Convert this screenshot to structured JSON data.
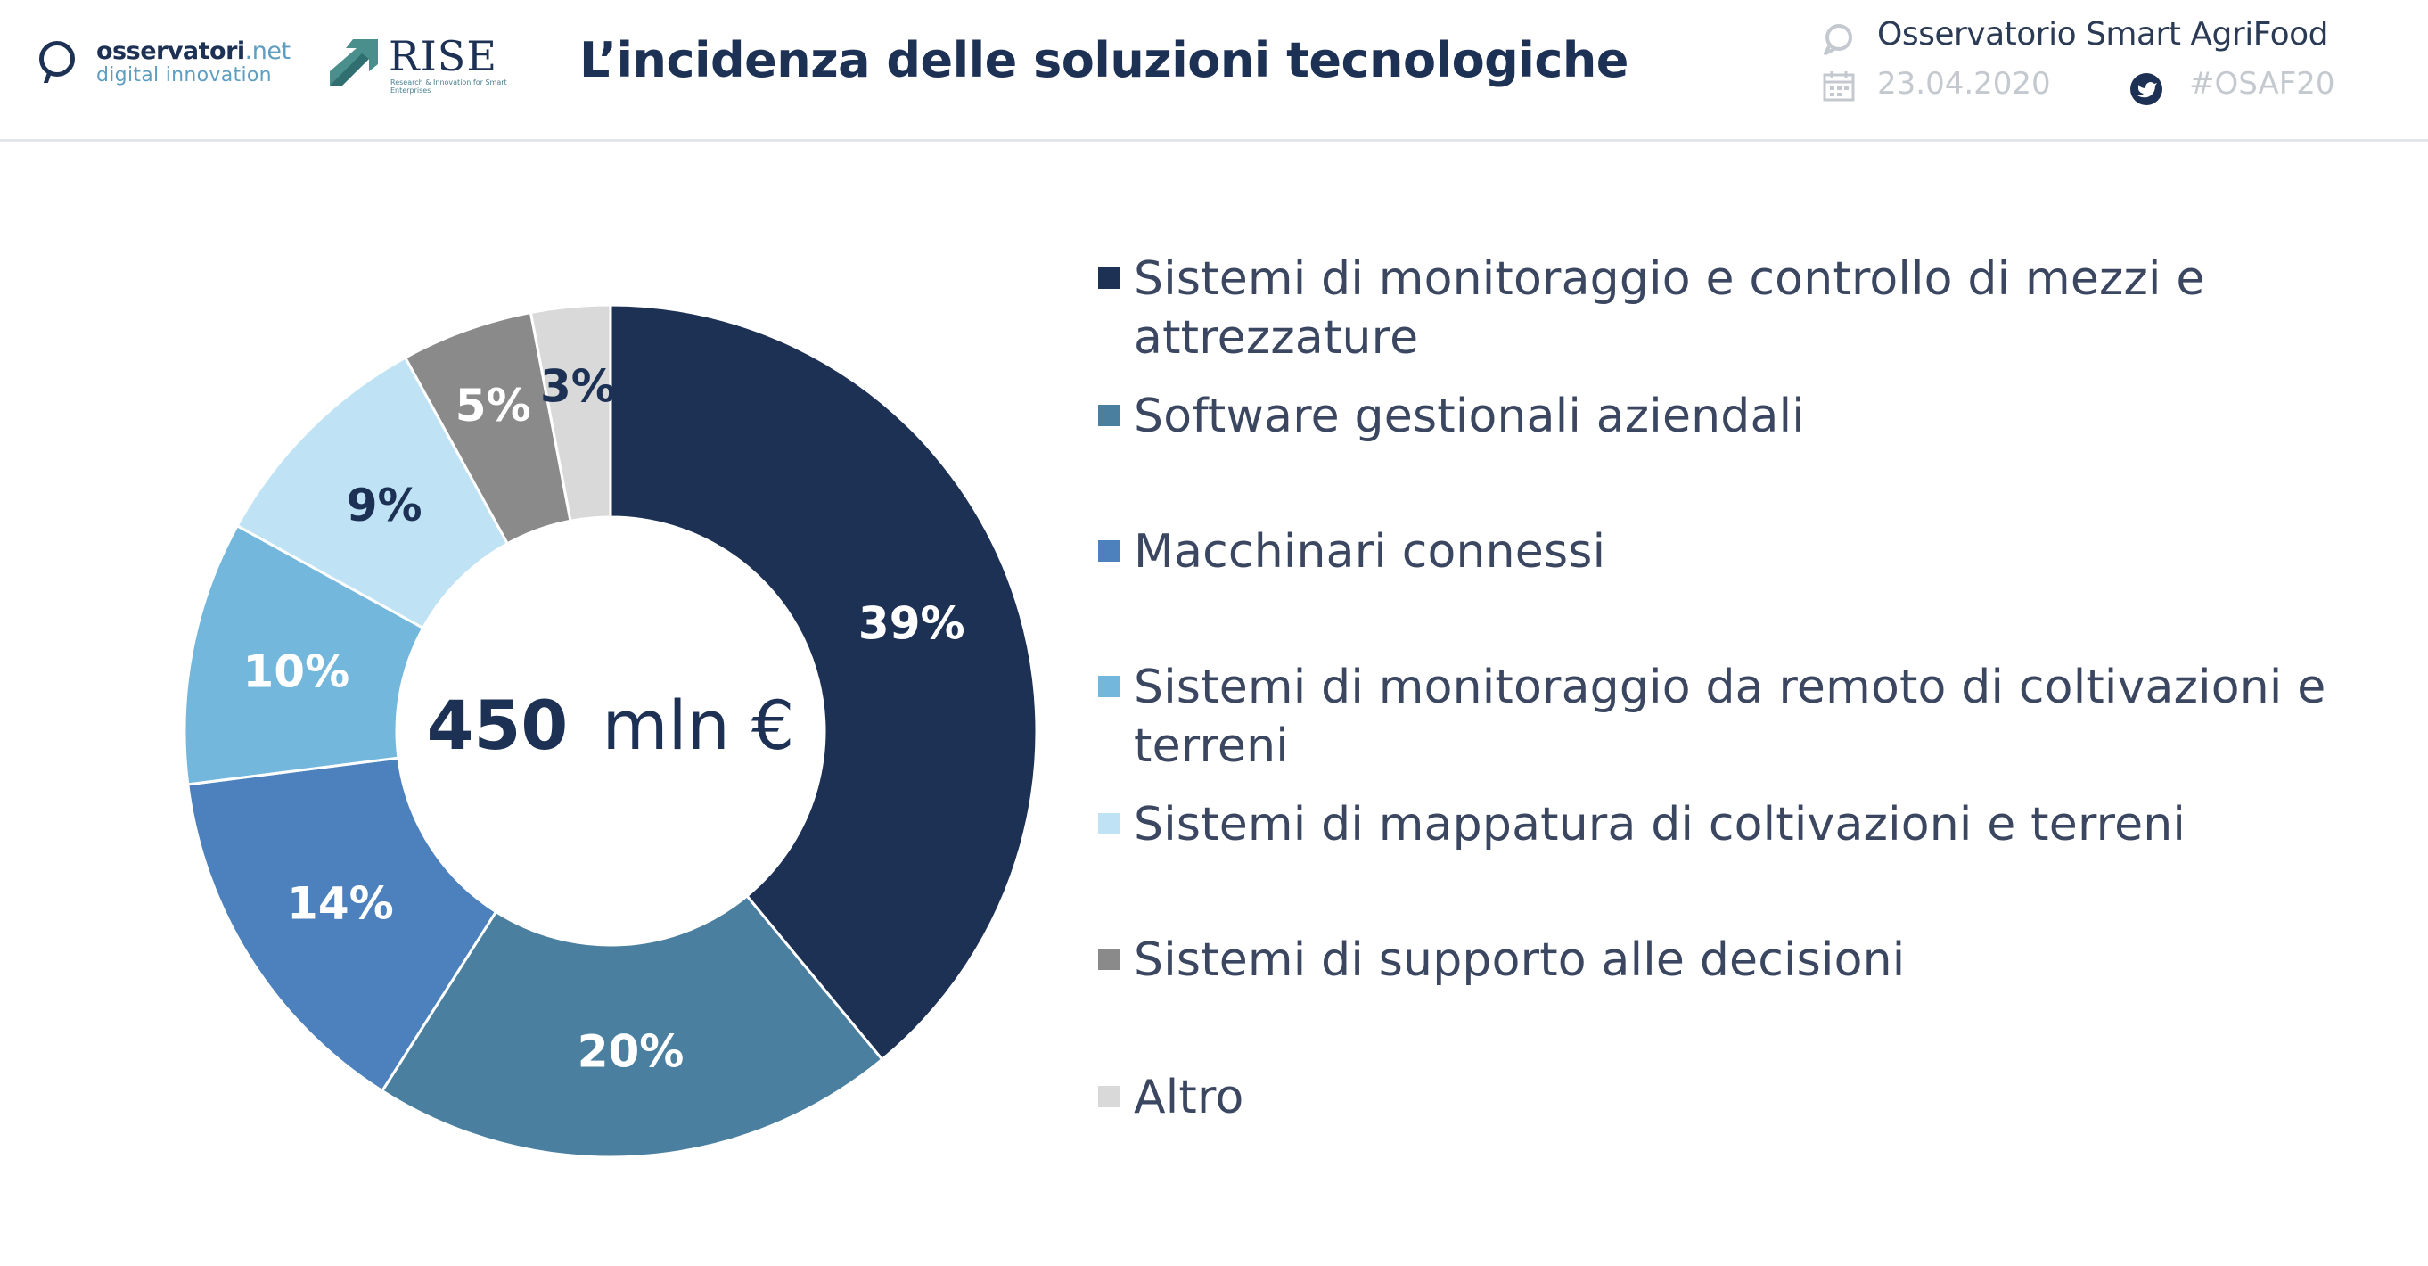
{
  "header": {
    "logo_osservatori_main": "osservatori",
    "logo_osservatori_net": ".net",
    "logo_osservatori_sub": "digital innovation",
    "logo_rise": "RISE",
    "logo_rise_sub": "Research & Innovation for Smart Enterprises",
    "title": "L’incidenza delle soluzioni tecnologiche",
    "event": "Osservatorio Smart AgriFood",
    "date": "23.04.2020",
    "hashtag": "#OSAF20"
  },
  "icons": {
    "event": "speech-bubble-icon",
    "date": "calendar-icon",
    "hashtag": "twitter-icon"
  },
  "chart_data": {
    "type": "pie",
    "donut": true,
    "center_value": "450",
    "center_unit": "mln €",
    "legend_position": "right",
    "categories": [
      "Sistemi di monitoraggio e controllo di mezzi e attrezzature",
      "Software gestionali aziendali",
      "Macchinari connessi",
      "Sistemi di monitoraggio da remoto di coltivazioni e terreni",
      "Sistemi di mappatura di coltivazioni e terreni",
      "Sistemi di supporto alle decisioni",
      "Altro"
    ],
    "values": [
      39,
      20,
      14,
      10,
      9,
      5,
      3
    ],
    "data_labels": [
      "39%",
      "20%",
      "14%",
      "10%",
      "9%",
      "5%",
      "3%"
    ],
    "colors": [
      "#1d3155",
      "#4a7fa0",
      "#4c81bd",
      "#73b7dc",
      "#bfe3f4",
      "#8a8a8a",
      "#d9d9d9"
    ],
    "label_colors": [
      "#ffffff",
      "#ffffff",
      "#ffffff",
      "#ffffff",
      "#1d3155",
      "#ffffff",
      "#1d3155"
    ]
  }
}
